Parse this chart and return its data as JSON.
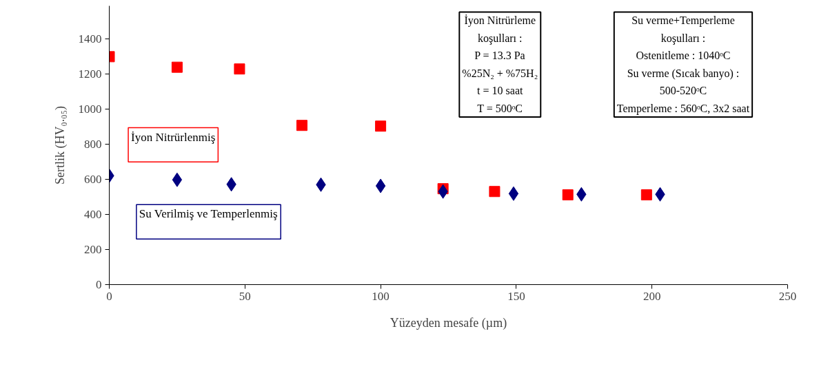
{
  "chart_data": {
    "type": "scatter",
    "xlabel": "Yüzeyden mesafe (µm)",
    "ylabel": "Sertlik (HV₀.₀₅)",
    "xlim": [
      0,
      250
    ],
    "xticks": [
      0,
      50,
      100,
      150,
      200,
      250
    ],
    "ylim": [
      0,
      1590
    ],
    "yticks": [
      0,
      200,
      400,
      600,
      800,
      1000,
      1200,
      1400
    ],
    "grid": false,
    "legend": false,
    "series": [
      {
        "name": "İyon Nitrürlenmiş",
        "color": "#ff0000",
        "marker": "square",
        "x": [
          0,
          25,
          48,
          71,
          100,
          123,
          142,
          169,
          198
        ],
        "values": [
          1300,
          1240,
          1230,
          908,
          904,
          547,
          531,
          512,
          512
        ]
      },
      {
        "name": "Su Verilmiş ve Temperlenmiş",
        "color": "#000080",
        "marker": "diamond",
        "x": [
          0,
          25,
          45,
          78,
          100,
          123,
          149,
          174,
          203
        ],
        "values": [
          621,
          598,
          572,
          570,
          563,
          531,
          519,
          515,
          515
        ]
      }
    ],
    "annotations": [
      "İyon Nitrürleme\nkoşulları :\nP = 13.3 Pa\n%25N₂ + %75H₂\nt = 10 saat\nT = 500ᵒC",
      "Su verme+Temperleme\nkoşulları :\nOstenitleme : 1040ᵒC\nSu verme (Sıcak banyo) :\n500-520ᵒC\nTemperleme : 560ᵒC, 3x2 saat"
    ]
  }
}
